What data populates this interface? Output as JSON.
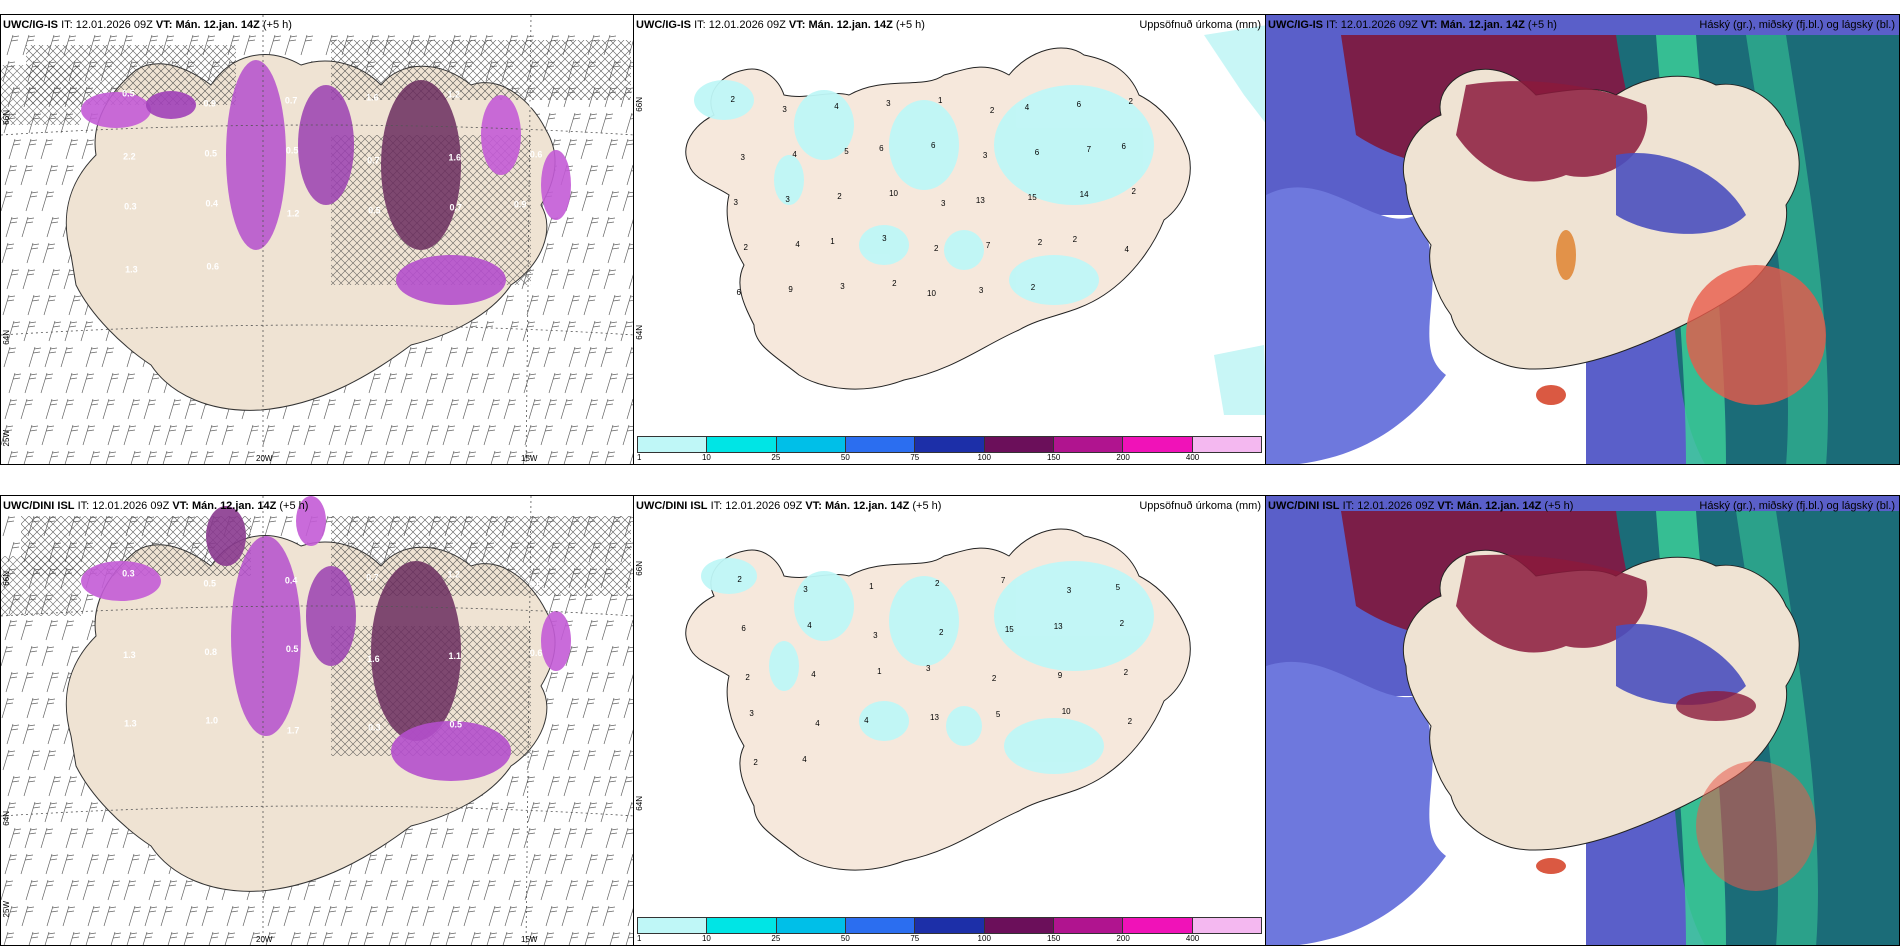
{
  "rows": [
    {
      "model": "UWC/IG-IS",
      "it_label": "IT:",
      "it_value": "12.01.2026 09Z",
      "vt_label": "VT:",
      "vt_value": "Mán. 12.jan. 14Z",
      "lead": "(+5 h)"
    },
    {
      "model": "UWC/DINI ISL",
      "it_label": "IT:",
      "it_value": "12.01.2026 09Z",
      "vt_label": "VT:",
      "vt_value": "Mán. 12.jan. 14Z",
      "lead": "(+5 h)"
    }
  ],
  "precip_title": "Uppsöfnuð úrkoma (mm)",
  "cloud_title": "Háský (gr.), miðský (fj.bl.) og lágský (bl.)",
  "axis_labels": {
    "lon_20w": "20W",
    "lon_15w": "15W",
    "lat_66n": "66N",
    "lat_64n": "64N",
    "lon_25w": "25W"
  },
  "legend": {
    "ticks": [
      "1",
      "10",
      "25",
      "50",
      "75",
      "100",
      "150",
      "200",
      "400"
    ],
    "colors": [
      "#bff7f7",
      "#00e5e5",
      "#00bfe8",
      "#2b6ef0",
      "#1c2fa8",
      "#6b0f5a",
      "#b0148f",
      "#f012b8",
      "#f4b8f0"
    ]
  },
  "precip_labels_top": [
    "2",
    "3",
    "4",
    "3",
    "1",
    "2",
    "4",
    "6",
    "2",
    "3",
    "4",
    "5",
    "6",
    "6",
    "3",
    "6",
    "7",
    "6",
    "3",
    "3",
    "2",
    "10",
    "3",
    "13",
    "15",
    "14",
    "2",
    "2",
    "4",
    "1",
    "3",
    "2",
    "7",
    "2",
    "2",
    "4",
    "6",
    "9",
    "3",
    "2",
    "10",
    "3",
    "2"
  ],
  "precip_labels_bottom": [
    "2",
    "3",
    "1",
    "2",
    "7",
    "3",
    "5",
    "6",
    "4",
    "3",
    "2",
    "15",
    "13",
    "2",
    "2",
    "4",
    "1",
    "3",
    "2",
    "9",
    "2",
    "3",
    "4",
    "4",
    "13",
    "5",
    "10",
    "2",
    "2",
    "4"
  ],
  "wind_labels_top": [
    "0.5",
    "0.9",
    "0.7",
    "1.6",
    "1.2",
    "0.8",
    "2.2",
    "0.5",
    "0.5",
    "0.7",
    "1.6",
    "0.6",
    "0.3",
    "0.4",
    "1.2",
    "0.5",
    "0.7",
    "0.9",
    "1.3",
    "0.6"
  ],
  "wind_labels_bottom": [
    "0.3",
    "0.5",
    "0.4",
    "0.7",
    "1.2",
    "0.6",
    "1.3",
    "0.8",
    "0.5",
    "1.6",
    "1.1",
    "0.6",
    "1.3",
    "1.0",
    "1.7",
    "0.3",
    "0.5"
  ]
}
